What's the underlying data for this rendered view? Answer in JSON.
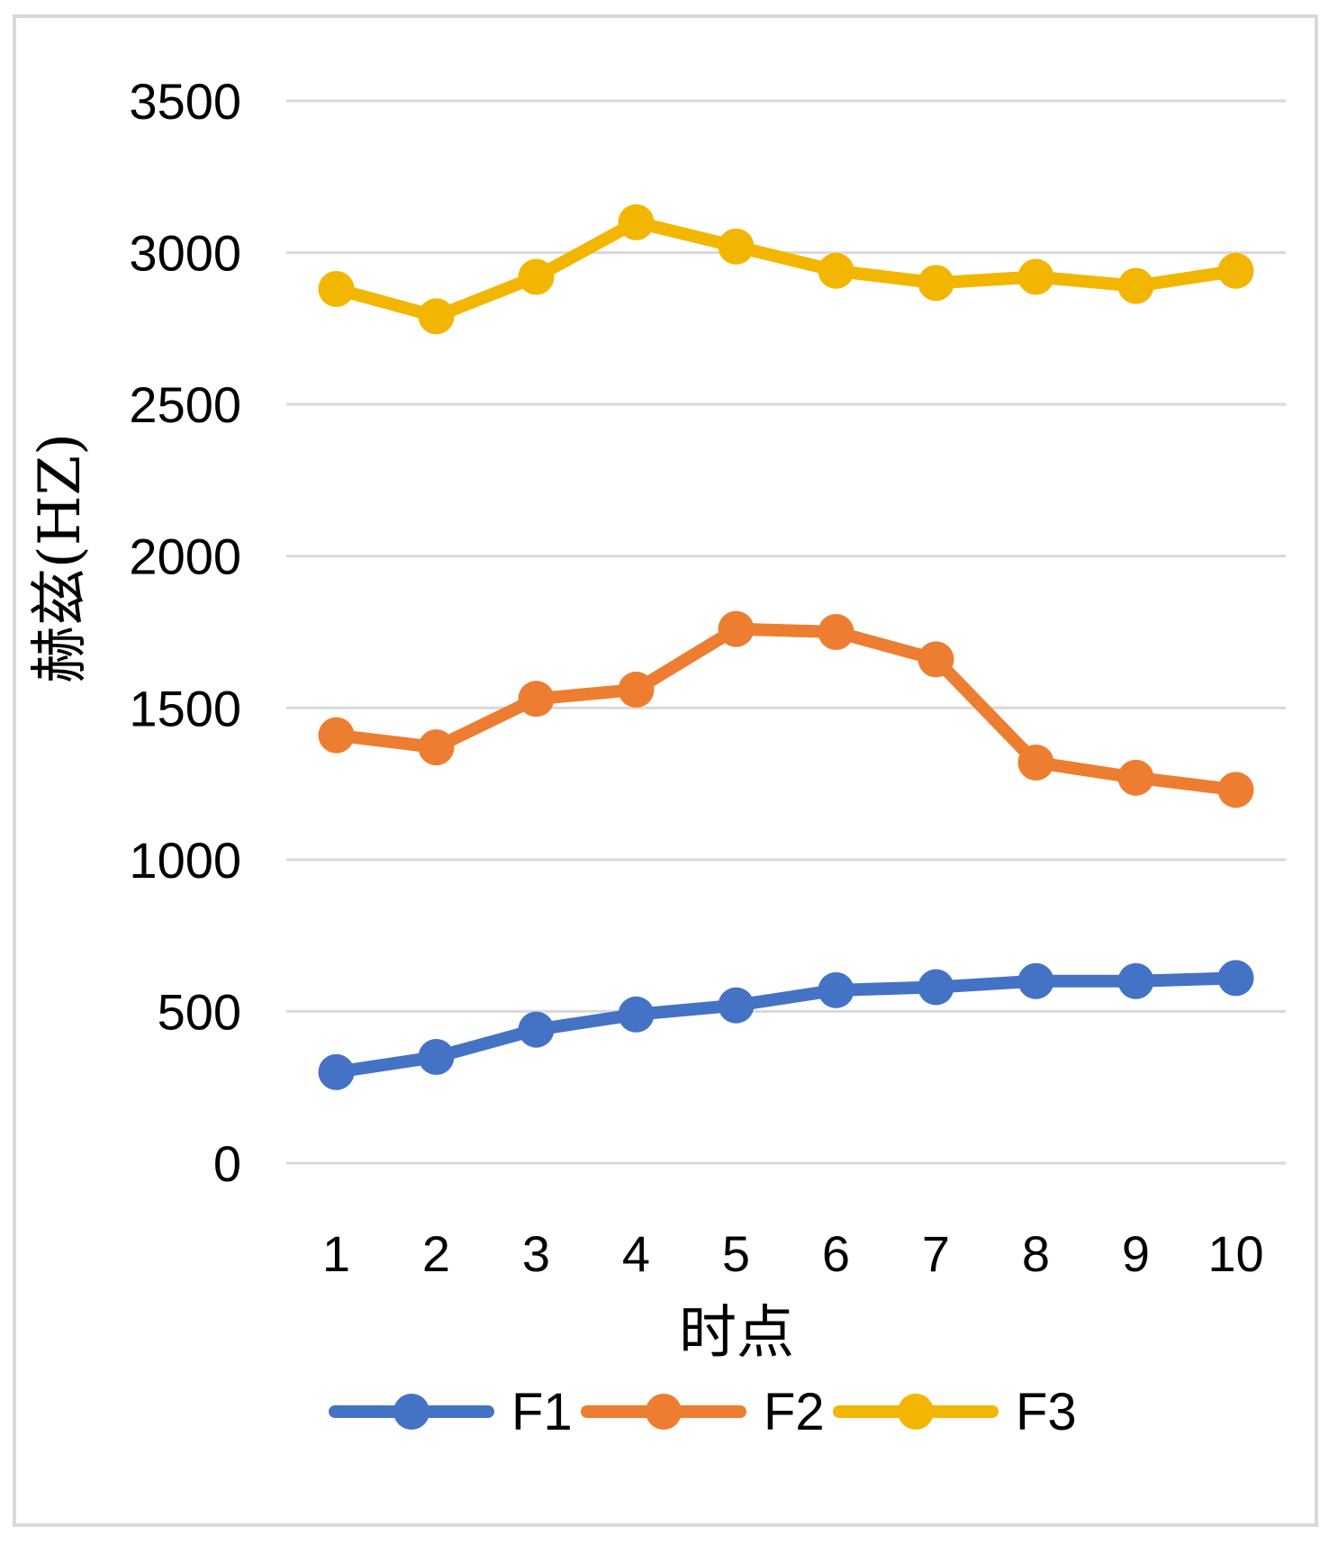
{
  "chart_data": {
    "type": "line",
    "categories": [
      "1",
      "2",
      "3",
      "4",
      "5",
      "6",
      "7",
      "8",
      "9",
      "10"
    ],
    "series": [
      {
        "name": "F1",
        "color": "#4472c4",
        "values": [
          300,
          350,
          440,
          490,
          520,
          570,
          580,
          600,
          600,
          610
        ]
      },
      {
        "name": "F2",
        "color": "#ed7d31",
        "values": [
          1410,
          1370,
          1530,
          1560,
          1760,
          1750,
          1660,
          1320,
          1270,
          1230
        ]
      },
      {
        "name": "F3",
        "color": "#f2b600",
        "values": [
          2880,
          2790,
          2920,
          3100,
          3020,
          2940,
          2900,
          2920,
          2890,
          2940
        ]
      }
    ],
    "yticks": [
      0,
      500,
      1000,
      1500,
      2000,
      2500,
      3000,
      3500
    ],
    "ylim": [
      0,
      3500
    ],
    "title": "",
    "xlabel": "时点",
    "ylabel": "赫兹(HZ)",
    "legend_position": "bottom",
    "grid": true
  }
}
